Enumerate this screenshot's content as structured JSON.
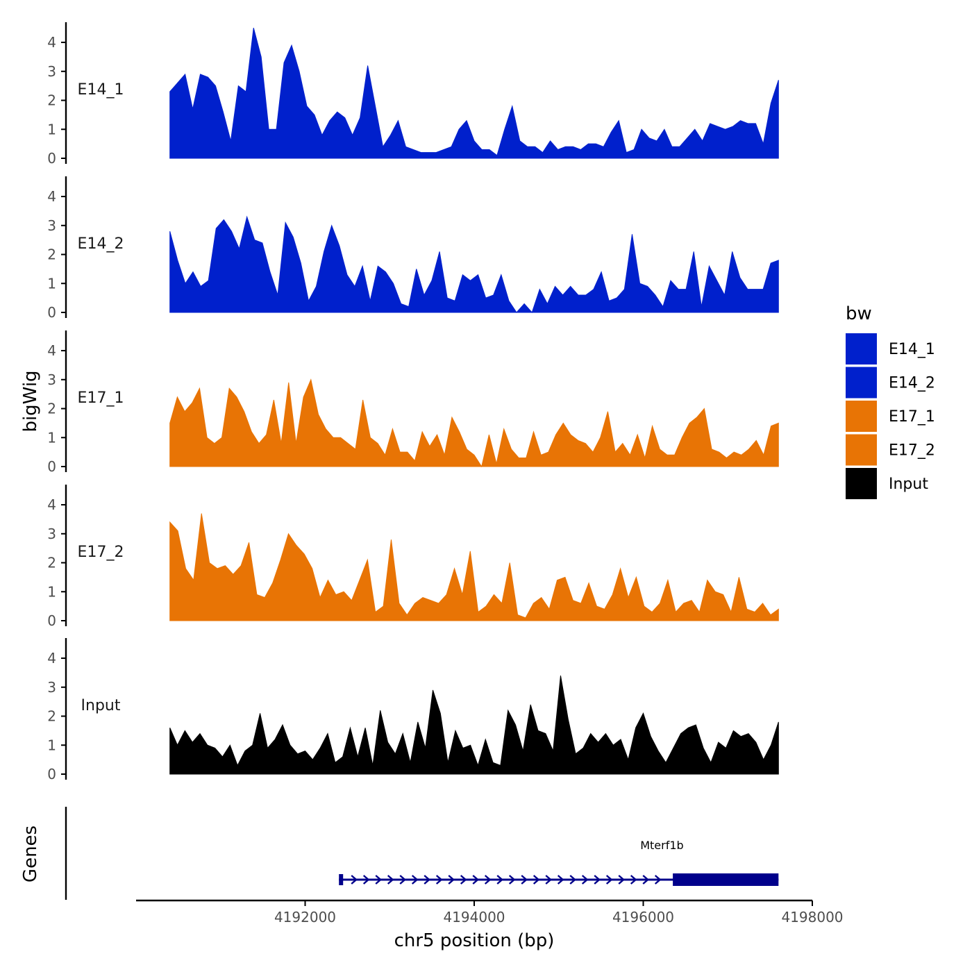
{
  "chart_data": {
    "type": "area",
    "title": "",
    "ylabel": "bigWig",
    "genes_label": "Genes",
    "xlabel": "chr5 position (bp)",
    "xlim": [
      4190000,
      4198000
    ],
    "data_xrange": [
      4190400,
      4197600
    ],
    "ylim": [
      0,
      4.6
    ],
    "yticks": [
      0,
      1,
      2,
      3,
      4
    ],
    "xticks": [
      4192000,
      4194000,
      4196000,
      4198000
    ],
    "xtick_labels": [
      "4192000",
      "4194000",
      "4196000",
      "4198000"
    ],
    "legend": {
      "title": "bw",
      "position": "right",
      "entries": [
        {
          "label": "E14_1",
          "color": "#0020CC"
        },
        {
          "label": "E14_2",
          "color": "#0020CC"
        },
        {
          "label": "E17_1",
          "color": "#E87405"
        },
        {
          "label": "E17_2",
          "color": "#E87405"
        },
        {
          "label": "Input",
          "color": "#000000"
        }
      ]
    },
    "series": [
      {
        "name": "E14_1",
        "color": "#0020CC",
        "values": [
          2.3,
          2.6,
          2.9,
          1.7,
          2.9,
          2.8,
          2.5,
          1.6,
          0.6,
          2.5,
          2.3,
          4.5,
          3.5,
          1.0,
          1.0,
          3.3,
          3.9,
          3.0,
          1.8,
          1.5,
          0.8,
          1.3,
          1.6,
          1.4,
          0.8,
          1.4,
          3.2,
          1.8,
          0.4,
          0.8,
          1.3,
          0.4,
          0.3,
          0.2,
          0.2,
          0.2,
          0.3,
          0.4,
          1.0,
          1.3,
          0.6,
          0.3,
          0.3,
          0.1,
          1.0,
          1.8,
          0.6,
          0.4,
          0.4,
          0.2,
          0.6,
          0.3,
          0.4,
          0.4,
          0.3,
          0.5,
          0.5,
          0.4,
          0.9,
          1.3,
          0.2,
          0.3,
          1.0,
          0.7,
          0.6,
          1.0,
          0.4,
          0.4,
          0.7,
          1.0,
          0.6,
          1.2,
          1.1,
          1.0,
          1.1,
          1.3,
          1.2,
          1.2,
          0.5,
          1.9,
          2.7
        ]
      },
      {
        "name": "E14_2",
        "color": "#0020CC",
        "values": [
          2.8,
          1.8,
          1.0,
          1.4,
          0.9,
          1.1,
          2.9,
          3.2,
          2.8,
          2.2,
          3.3,
          2.5,
          2.4,
          1.4,
          0.6,
          3.1,
          2.6,
          1.7,
          0.4,
          0.9,
          2.1,
          3.0,
          2.3,
          1.3,
          0.9,
          1.6,
          0.4,
          1.6,
          1.4,
          1.0,
          0.3,
          0.2,
          1.5,
          0.6,
          1.1,
          2.1,
          0.5,
          0.4,
          1.3,
          1.1,
          1.3,
          0.5,
          0.6,
          1.3,
          0.4,
          0.0,
          0.3,
          0.0,
          0.8,
          0.3,
          0.9,
          0.6,
          0.9,
          0.6,
          0.6,
          0.8,
          1.4,
          0.4,
          0.5,
          0.8,
          2.7,
          1.0,
          0.9,
          0.6,
          0.2,
          1.1,
          0.8,
          0.8,
          2.1,
          0.2,
          1.6,
          1.1,
          0.6,
          2.1,
          1.2,
          0.8,
          0.8,
          0.8,
          1.7,
          1.8
        ]
      },
      {
        "name": "E17_1",
        "color": "#E87405",
        "values": [
          1.5,
          2.4,
          1.9,
          2.2,
          2.7,
          1.0,
          0.8,
          1.0,
          2.7,
          2.4,
          1.9,
          1.2,
          0.8,
          1.1,
          2.3,
          0.8,
          2.9,
          0.8,
          2.4,
          3.0,
          1.8,
          1.3,
          1.0,
          1.0,
          0.8,
          0.6,
          2.3,
          1.0,
          0.8,
          0.4,
          1.3,
          0.5,
          0.5,
          0.2,
          1.2,
          0.7,
          1.1,
          0.4,
          1.7,
          1.2,
          0.6,
          0.4,
          0.0,
          1.1,
          0.1,
          1.3,
          0.6,
          0.3,
          0.3,
          1.2,
          0.4,
          0.5,
          1.1,
          1.5,
          1.1,
          0.9,
          0.8,
          0.5,
          1.0,
          1.9,
          0.5,
          0.8,
          0.4,
          1.1,
          0.3,
          1.4,
          0.6,
          0.4,
          0.4,
          1.0,
          1.5,
          1.7,
          2.0,
          0.6,
          0.5,
          0.3,
          0.5,
          0.4,
          0.6,
          0.9,
          0.4,
          1.4,
          1.5
        ]
      },
      {
        "name": "E17_2",
        "color": "#E87405",
        "values": [
          3.4,
          3.1,
          1.8,
          1.4,
          3.7,
          2.0,
          1.8,
          1.9,
          1.6,
          1.9,
          2.7,
          0.9,
          0.8,
          1.3,
          2.1,
          3.0,
          2.6,
          2.3,
          1.8,
          0.8,
          1.4,
          0.9,
          1.0,
          0.7,
          1.4,
          2.1,
          0.3,
          0.5,
          2.8,
          0.6,
          0.2,
          0.6,
          0.8,
          0.7,
          0.6,
          0.9,
          1.8,
          0.9,
          2.4,
          0.3,
          0.5,
          0.9,
          0.6,
          2.0,
          0.2,
          0.1,
          0.6,
          0.8,
          0.4,
          1.4,
          1.5,
          0.7,
          0.6,
          1.3,
          0.5,
          0.4,
          0.9,
          1.8,
          0.8,
          1.5,
          0.5,
          0.3,
          0.6,
          1.4,
          0.3,
          0.6,
          0.7,
          0.3,
          1.4,
          1.0,
          0.9,
          0.3,
          1.5,
          0.4,
          0.3,
          0.6,
          0.2,
          0.4
        ]
      },
      {
        "name": "Input",
        "color": "#000000",
        "values": [
          1.6,
          1.0,
          1.5,
          1.1,
          1.4,
          1.0,
          0.9,
          0.6,
          1.0,
          0.3,
          0.8,
          1.0,
          2.1,
          0.9,
          1.2,
          1.7,
          1.0,
          0.7,
          0.8,
          0.5,
          0.9,
          1.4,
          0.4,
          0.6,
          1.6,
          0.6,
          1.6,
          0.3,
          2.2,
          1.1,
          0.7,
          1.4,
          0.4,
          1.8,
          0.9,
          2.9,
          2.1,
          0.4,
          1.5,
          0.9,
          1.0,
          0.3,
          1.2,
          0.4,
          0.3,
          2.2,
          1.7,
          0.8,
          2.4,
          1.5,
          1.4,
          0.8,
          3.4,
          1.9,
          0.7,
          0.9,
          1.4,
          1.1,
          1.4,
          1.0,
          1.2,
          0.5,
          1.6,
          2.1,
          1.3,
          0.8,
          0.4,
          0.9,
          1.4,
          1.6,
          1.7,
          0.9,
          0.4,
          1.1,
          0.9,
          1.5,
          1.3,
          1.4,
          1.1,
          0.5,
          1.0,
          1.8
        ]
      }
    ],
    "gene": {
      "name": "Mterf1b",
      "start": 4192400,
      "end": 4197600,
      "thick_start": 4196350,
      "strand": "+",
      "color": "#00008B"
    }
  }
}
